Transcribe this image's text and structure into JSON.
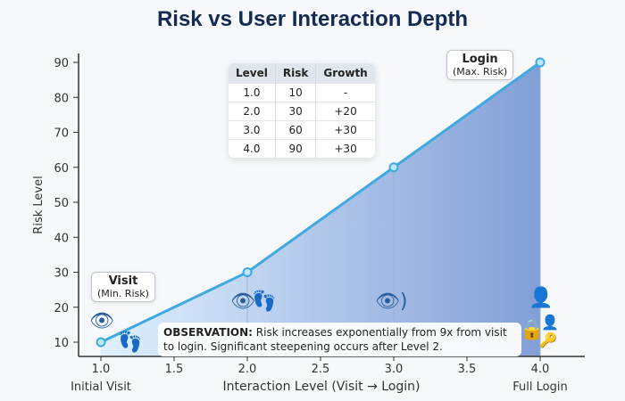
{
  "chart_data": {
    "type": "area",
    "title": "Risk vs User Interaction Depth",
    "xlabel": "Interaction Level (Visit → Login)",
    "ylabel": "Risk Level",
    "x": [
      1.0,
      2.0,
      3.0,
      4.0
    ],
    "values": [
      10,
      30,
      60,
      90
    ],
    "xticks": [
      "1.0",
      "1.5",
      "2.0",
      "2.5",
      "3.0",
      "3.5",
      "4.0"
    ],
    "yticks": [
      "10",
      "20",
      "30",
      "40",
      "50",
      "60",
      "70",
      "80",
      "90"
    ],
    "xlim": [
      0.85,
      4.2
    ],
    "ylim": [
      6,
      93
    ],
    "grid": false,
    "x_end_labels": {
      "left": "Initial Visit",
      "right": "Full Login"
    },
    "colors": {
      "line": "#3fa9e0",
      "fill_start": "#d6ecf8",
      "fill_end": "#6b8fcf",
      "title": "#132a52"
    }
  },
  "table": {
    "headers": [
      "Level",
      "Risk",
      "Growth"
    ],
    "rows": [
      [
        "1.0",
        "10",
        "-"
      ],
      [
        "2.0",
        "30",
        "+20"
      ],
      [
        "3.0",
        "60",
        "+30"
      ],
      [
        "4.0",
        "90",
        "+30"
      ]
    ]
  },
  "callouts": {
    "visit_title": "Visit",
    "visit_sub": "(Min. Risk)",
    "login_title": "Login",
    "login_sub": "(Max. Risk)"
  },
  "observation": {
    "label": "OBSERVATION:",
    "text": " Risk increases exponentially from 9x from visit to login. Significant steepening occurs after Level 2."
  },
  "icons": [
    "eye-icon",
    "footprint-icon",
    "eye-icon",
    "footprint-icon",
    "eye-signal-icon",
    "user-icon",
    "lock-icon",
    "user-icon",
    "key-icon"
  ]
}
